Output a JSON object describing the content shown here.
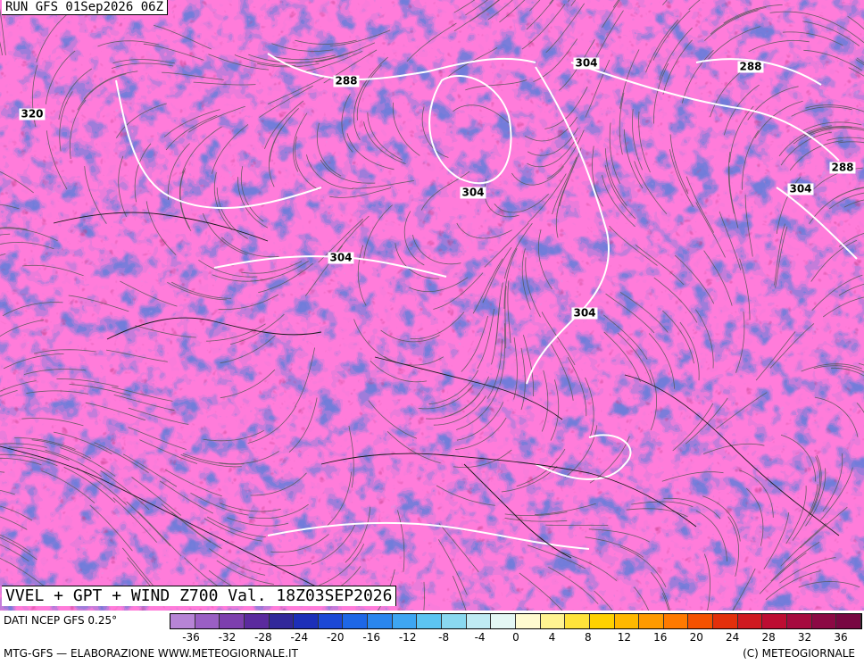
{
  "run_label": "RUN GFS 01Sep2026 06Z",
  "title": "VVEL + GPT + WIND Z700 Val. 18Z03SEP2026",
  "isolines": {
    "labels": [
      "320",
      "288",
      "304",
      "288",
      "288",
      "304",
      "304",
      "304",
      "304"
    ]
  },
  "legend": {
    "source": "DATI NCEP GFS 0.25°",
    "ticks": [
      "-36",
      "-32",
      "-28",
      "-24",
      "-20",
      "-16",
      "-12",
      "-8",
      "-4",
      "0",
      "4",
      "8",
      "12",
      "16",
      "20",
      "24",
      "28",
      "32",
      "36"
    ],
    "colors": [
      "#b784d6",
      "#9a5fc4",
      "#7d3fae",
      "#5b2a9e",
      "#32289a",
      "#1d2fb8",
      "#1c48d6",
      "#1e67e6",
      "#2a86ee",
      "#3ea6f2",
      "#5cc4f2",
      "#8ad8f0",
      "#bfeaf3",
      "#e4f7f4",
      "#fffbd0",
      "#fff391",
      "#ffe33a",
      "#ffd100",
      "#ffb800",
      "#ff9a00",
      "#ff7a00",
      "#f55200",
      "#e3300b",
      "#d01a20",
      "#bd0d32",
      "#a60a3e",
      "#8c0944",
      "#780742"
    ],
    "range": [
      -36,
      36
    ]
  },
  "credits": {
    "left": "MTG-GFS — ELABORAZIONE WWW.METEOGIORNALE.IT",
    "right": "(C) METEOGIORNALE"
  }
}
